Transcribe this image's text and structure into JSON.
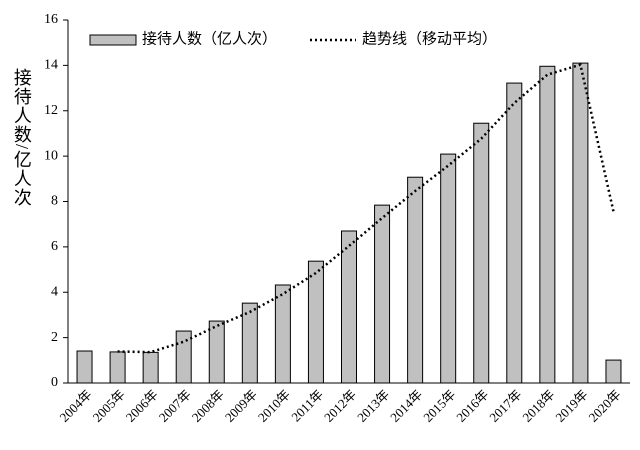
{
  "chart_data": {
    "type": "bar",
    "y_label": "接待人数/亿人次",
    "categories": [
      "2004年",
      "2005年",
      "2006年",
      "2007年",
      "2008年",
      "2009年",
      "2010年",
      "2011年",
      "2012年",
      "2013年",
      "2014年",
      "2015年",
      "2016年",
      "2017年",
      "2018年",
      "2019年",
      "2020年"
    ],
    "series": [
      {
        "name": "接待人数（亿人次）",
        "type": "bar",
        "color": "#c0c0c0",
        "values": [
          1.41,
          1.37,
          1.35,
          2.29,
          2.73,
          3.52,
          4.32,
          5.37,
          6.7,
          7.84,
          9.07,
          10.09,
          11.45,
          13.22,
          13.96,
          14.1,
          1.01
        ]
      },
      {
        "name": "趋势线（移动平均）",
        "type": "line",
        "color": "#000000",
        "values": [
          null,
          1.39,
          1.36,
          1.82,
          2.51,
          3.13,
          3.92,
          4.85,
          6.04,
          7.27,
          8.46,
          9.58,
          10.77,
          12.34,
          13.59,
          14.03,
          7.56
        ]
      }
    ],
    "ylim": [
      0,
      16
    ],
    "yticks": [
      0,
      2,
      4,
      6,
      8,
      10,
      12,
      14,
      16
    ],
    "legend": "top"
  }
}
